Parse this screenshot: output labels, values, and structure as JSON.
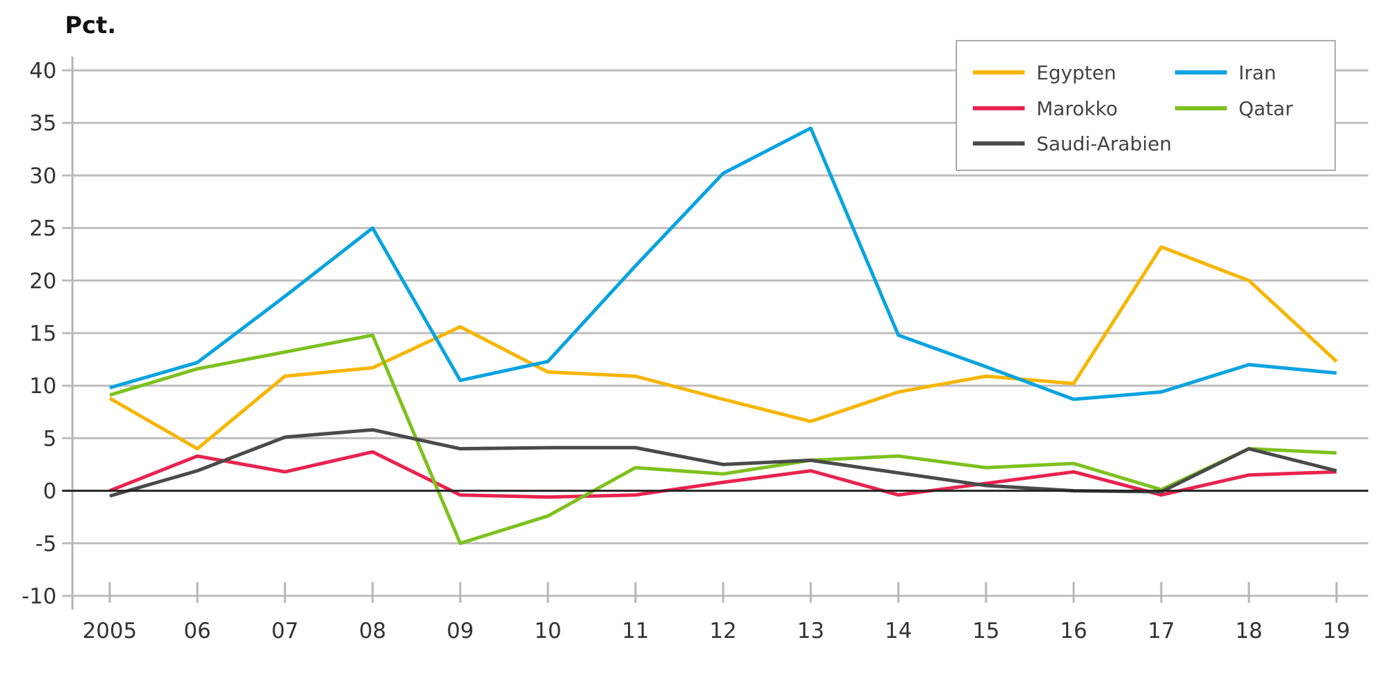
{
  "chart_data": {
    "type": "line",
    "title": "",
    "ylabel": "Pct.",
    "xlabel": "",
    "categories": [
      "2005",
      "06",
      "07",
      "08",
      "09",
      "10",
      "11",
      "12",
      "13",
      "14",
      "15",
      "16",
      "17",
      "18",
      "19"
    ],
    "ylim": [
      -10,
      40
    ],
    "yticks": [
      40,
      35,
      30,
      25,
      20,
      15,
      10,
      5,
      0,
      -5,
      -10
    ],
    "grid": true,
    "legend_position": "top-right",
    "series": [
      {
        "name": "Egypten",
        "color": "#f7b500",
        "values": [
          8.8,
          4.0,
          10.9,
          11.7,
          15.6,
          11.3,
          10.9,
          8.7,
          6.6,
          9.4,
          10.9,
          10.2,
          23.2,
          20.0,
          12.3
        ]
      },
      {
        "name": "Iran",
        "color": "#0aa3e0",
        "values": [
          9.8,
          12.2,
          18.5,
          25.0,
          10.5,
          12.3,
          21.4,
          30.2,
          34.5,
          14.8,
          11.8,
          8.7,
          9.4,
          12.0,
          11.2
        ]
      },
      {
        "name": "Marokko",
        "color": "#e8234f",
        "values": [
          0.0,
          3.3,
          1.8,
          3.7,
          -0.4,
          -0.6,
          -0.4,
          0.8,
          1.9,
          -0.4,
          0.7,
          1.8,
          -0.4,
          1.5,
          1.8
        ]
      },
      {
        "name": "Qatar",
        "color": "#7dc11e",
        "values": [
          9.1,
          11.6,
          13.2,
          14.8,
          -5.0,
          -2.4,
          2.2,
          1.6,
          2.9,
          3.3,
          2.2,
          2.6,
          0.1,
          4.0,
          3.6
        ]
      },
      {
        "name": "Saudi-Arabien",
        "color": "#4a4a4a",
        "values": [
          -0.5,
          1.9,
          5.1,
          5.8,
          4.0,
          4.1,
          4.1,
          2.5,
          2.9,
          1.7,
          0.5,
          0.0,
          -0.1,
          4.0,
          1.9
        ]
      }
    ]
  }
}
